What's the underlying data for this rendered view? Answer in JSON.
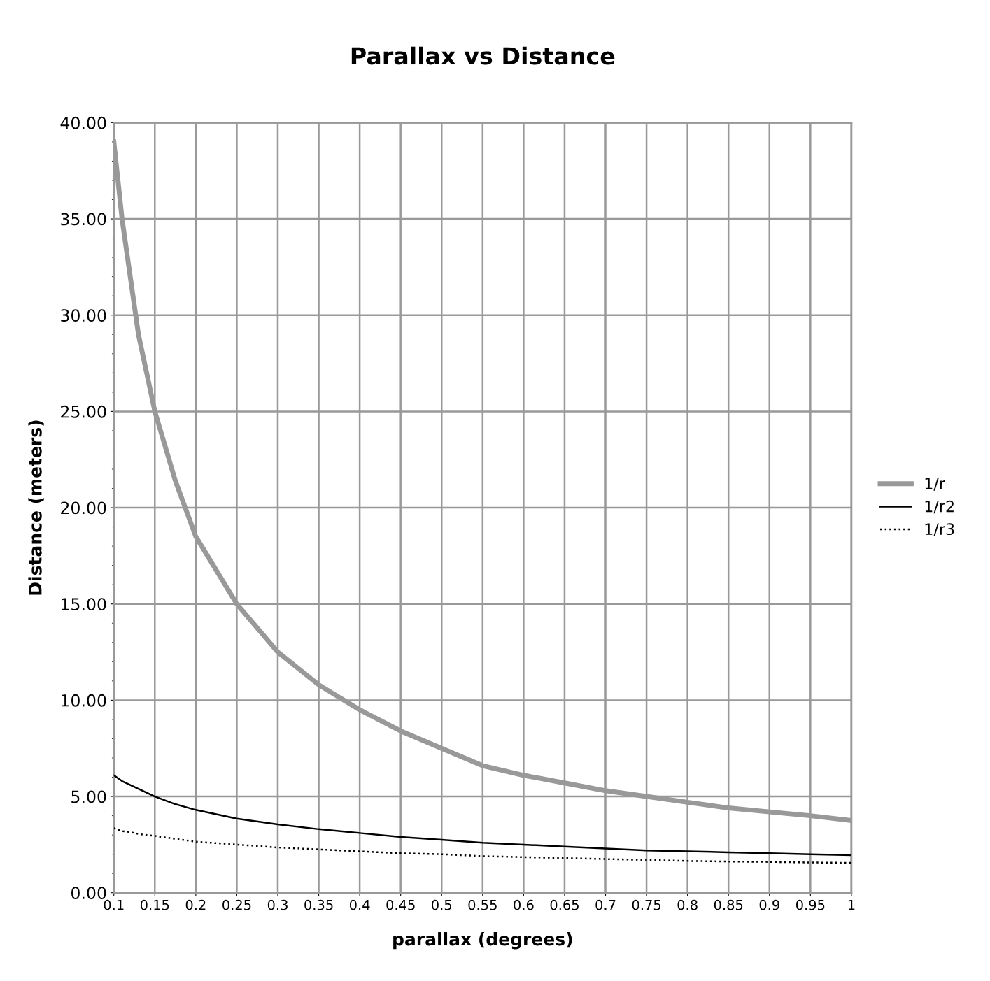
{
  "chart_data": {
    "type": "line",
    "title": "Parallax vs Distance",
    "xlabel": "parallax (degrees)",
    "ylabel": "Distance (meters)",
    "x": [
      0.1,
      0.11,
      0.12,
      0.13,
      0.15,
      0.175,
      0.2,
      0.25,
      0.3,
      0.35,
      0.4,
      0.45,
      0.5,
      0.55,
      0.6,
      0.65,
      0.7,
      0.75,
      0.8,
      0.85,
      0.9,
      0.95,
      1
    ],
    "series": [
      {
        "name": "1/r",
        "color": "#999999",
        "line_style": "solid",
        "values": [
          39.0,
          35.0,
          32.0,
          29.0,
          25.0,
          21.4,
          18.5,
          15.0,
          12.5,
          10.8,
          9.5,
          8.4,
          7.5,
          6.6,
          6.1,
          5.7,
          5.3,
          5.0,
          4.7,
          4.4,
          4.2,
          4.0,
          3.75
        ]
      },
      {
        "name": "1/r2",
        "color": "#000000",
        "line_style": "solid",
        "values": [
          6.1,
          5.8,
          5.6,
          5.4,
          5.0,
          4.6,
          4.3,
          3.85,
          3.55,
          3.3,
          3.1,
          2.9,
          2.75,
          2.6,
          2.5,
          2.4,
          2.3,
          2.2,
          2.15,
          2.1,
          2.05,
          2.0,
          1.95
        ]
      },
      {
        "name": "1/r3",
        "color": "#000000",
        "line_style": "dotted",
        "values": [
          3.35,
          3.2,
          3.15,
          3.05,
          2.95,
          2.8,
          2.65,
          2.5,
          2.35,
          2.25,
          2.15,
          2.05,
          2.0,
          1.9,
          1.85,
          1.8,
          1.75,
          1.7,
          1.65,
          1.62,
          1.6,
          1.57,
          1.55
        ]
      }
    ],
    "xlim": [
      0.1,
      1
    ],
    "xticks": [
      0.1,
      0.15,
      0.2,
      0.25,
      0.3,
      0.35,
      0.4,
      0.45,
      0.5,
      0.55,
      0.6,
      0.65,
      0.7,
      0.75,
      0.8,
      0.85,
      0.9,
      0.95,
      1
    ],
    "ylim": [
      0,
      40
    ],
    "yticks": [
      {
        "value": 0,
        "label": "0.00"
      },
      {
        "value": 5,
        "label": "5.00"
      },
      {
        "value": 10,
        "label": "10.00"
      },
      {
        "value": 15,
        "label": "15.00"
      },
      {
        "value": 20,
        "label": "20.00"
      },
      {
        "value": 25,
        "label": "25.00"
      },
      {
        "value": 30,
        "label": "30.00"
      },
      {
        "value": 35,
        "label": "35.00"
      },
      {
        "value": 40,
        "label": "40.00"
      }
    ],
    "grid": true,
    "legend": "right"
  }
}
